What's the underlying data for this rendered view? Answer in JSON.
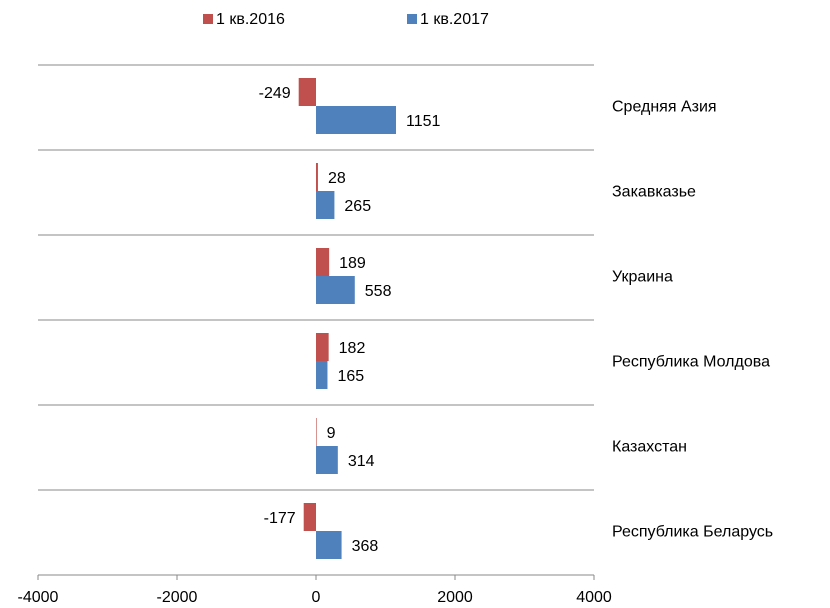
{
  "chart_data": {
    "type": "barh",
    "categories": [
      "Средняя Азия",
      "Закавказье",
      "Украина",
      "Республика Молдова",
      "Казахстан",
      "Республика Беларусь"
    ],
    "series": [
      {
        "name": "1 кв.2016",
        "color": "#c0504d",
        "values": [
          -249,
          28,
          189,
          182,
          9,
          -177
        ]
      },
      {
        "name": "1 кв.2017",
        "color": "#4f81bd",
        "values": [
          1151,
          265,
          558,
          165,
          314,
          368
        ]
      }
    ],
    "xlim": [
      -4000,
      4000
    ],
    "xticks": [
      -4000,
      -2000,
      0,
      2000,
      4000
    ],
    "legend": "top"
  }
}
